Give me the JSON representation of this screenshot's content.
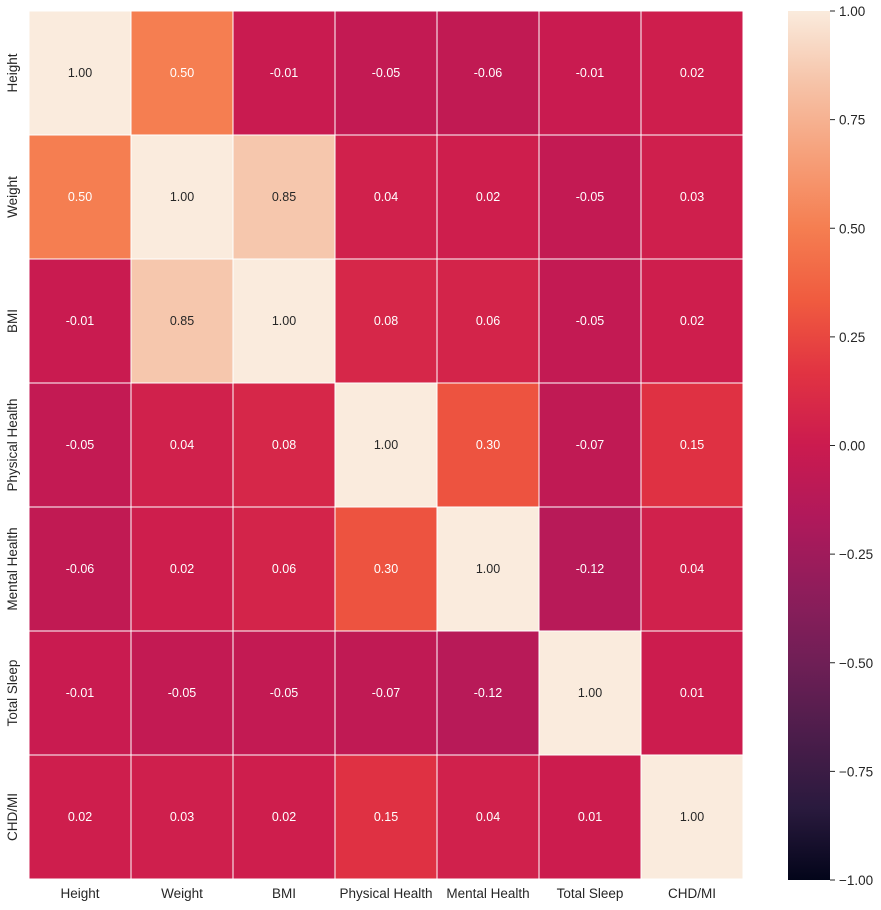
{
  "chart_data": {
    "type": "heatmap",
    "title": "",
    "xlabel": "",
    "ylabel": "",
    "categories": [
      "Height",
      "Weight",
      "BMI",
      "Physical Health",
      "Mental Health",
      "Total Sleep",
      "CHD/MI"
    ],
    "x": [
      "Height",
      "Weight",
      "BMI",
      "Physical Health",
      "Mental Health",
      "Total Sleep",
      "CHD/MI"
    ],
    "y": [
      "Height",
      "Weight",
      "BMI",
      "Physical Health",
      "Mental Health",
      "Total Sleep",
      "CHD/MI"
    ],
    "values": [
      [
        1.0,
        0.5,
        -0.01,
        -0.05,
        -0.06,
        -0.01,
        0.02
      ],
      [
        0.5,
        1.0,
        0.85,
        0.04,
        0.02,
        -0.05,
        0.03
      ],
      [
        -0.01,
        0.85,
        1.0,
        0.08,
        0.06,
        -0.05,
        0.02
      ],
      [
        -0.05,
        0.04,
        0.08,
        1.0,
        0.3,
        -0.07,
        0.15
      ],
      [
        -0.06,
        0.02,
        0.06,
        0.3,
        1.0,
        -0.12,
        0.04
      ],
      [
        -0.01,
        -0.05,
        -0.05,
        -0.07,
        -0.12,
        1.0,
        0.01
      ],
      [
        0.02,
        0.03,
        0.02,
        0.15,
        0.04,
        0.01,
        1.0
      ]
    ],
    "value_format": "0.00",
    "colorbar": {
      "range": [
        -1,
        1
      ],
      "ticks": [
        -1.0,
        -0.75,
        -0.5,
        -0.25,
        0.0,
        0.25,
        0.5,
        0.75,
        1.0
      ],
      "tick_labels": [
        "−1.00",
        "−0.75",
        "−0.50",
        "−0.25",
        "0.00",
        "0.25",
        "0.50",
        "0.75",
        "1.00"
      ],
      "colormap": "rocket",
      "colormap_stops": [
        "#03051a",
        "#2a1a3e",
        "#4c1d4b",
        "#6f1f56",
        "#8f1d5b",
        "#b0195b",
        "#cb1b4f",
        "#e13342",
        "#f05b3f",
        "#f57e51",
        "#f6a07a",
        "#f6c3a8",
        "#faebdd"
      ]
    },
    "legend": "colorbar right",
    "grid": false
  }
}
